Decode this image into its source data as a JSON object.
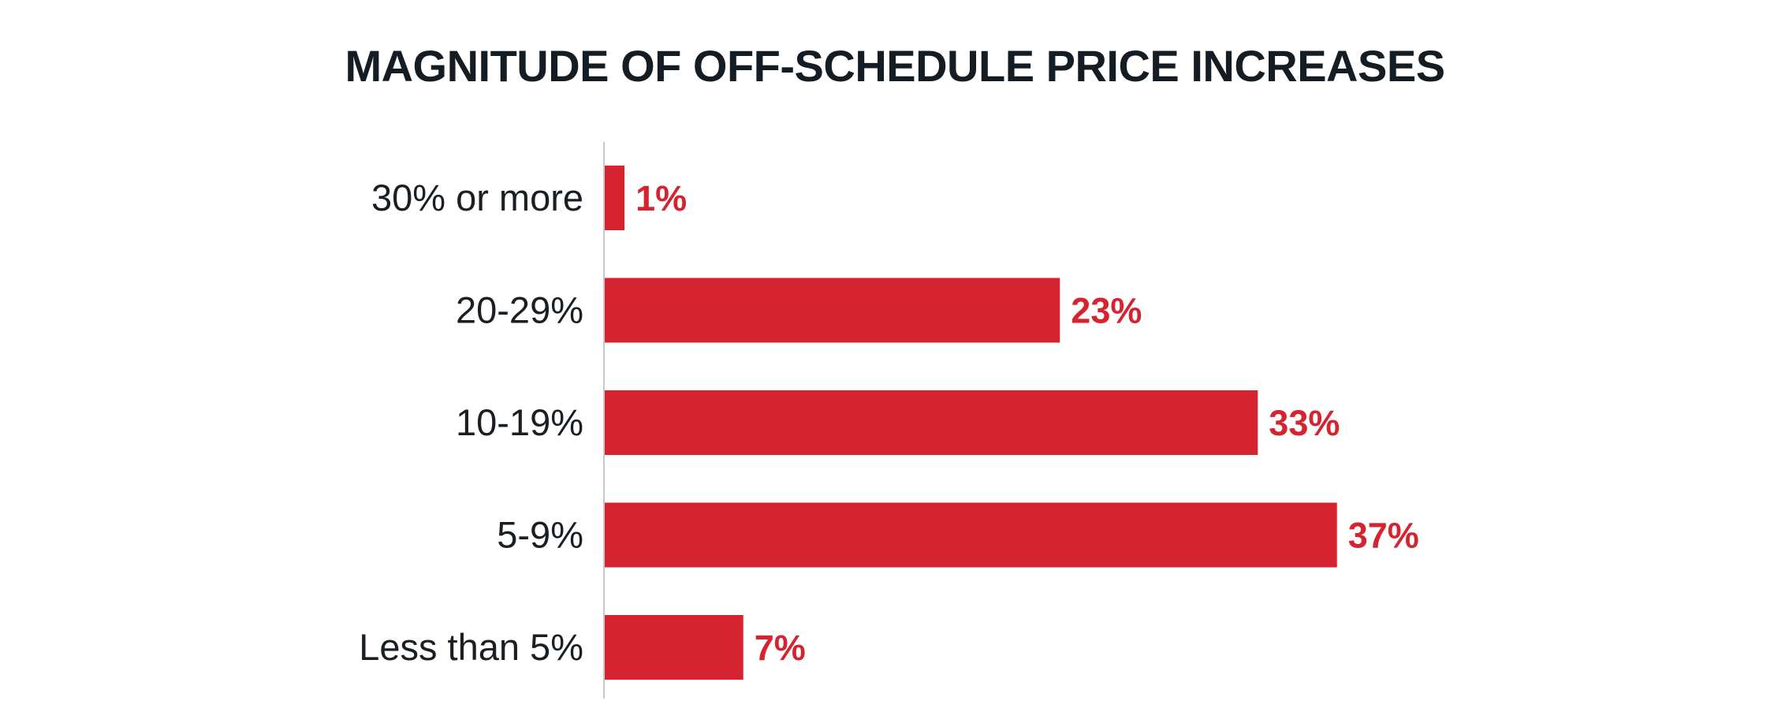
{
  "chart_data": {
    "type": "bar",
    "orientation": "horizontal",
    "title": "MAGNITUDE OF OFF-SCHEDULE PRICE INCREASES",
    "categories": [
      "30% or more",
      "20-29%",
      "10-19%",
      "5-9%",
      "Less than 5%"
    ],
    "values": [
      1,
      23,
      33,
      37,
      7
    ],
    "value_labels": [
      "1%",
      "23%",
      "33%",
      "37%",
      "7%"
    ],
    "xlabel": "",
    "ylabel": "",
    "xlim": [
      0,
      40
    ],
    "grid": false,
    "legend": "none",
    "colors": {
      "bar": "#d52330",
      "value_label": "#d52330",
      "axis": "#c8c8c8",
      "title": "#141c24",
      "category_label": "#1a1f24"
    }
  }
}
